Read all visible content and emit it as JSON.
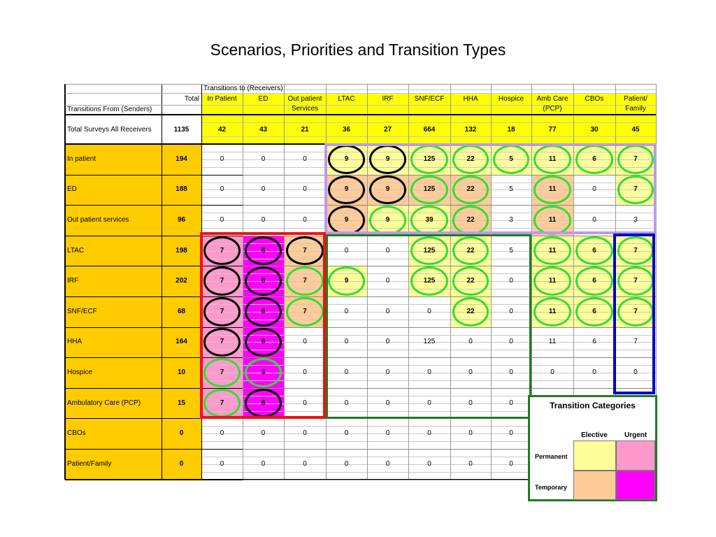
{
  "title": "Scenarios, Priorities and Transition Types",
  "header": {
    "group_label": "Transitions to (Receivers)",
    "total_label": "Total",
    "senders_label": "Transitions From (Senders)",
    "receivers": [
      {
        "line1": "In Patient",
        "line2": ""
      },
      {
        "line1": "ED",
        "line2": ""
      },
      {
        "line1": "Out patient",
        "line2": "Services"
      },
      {
        "line1": "LTAC",
        "line2": ""
      },
      {
        "line1": "IRF",
        "line2": ""
      },
      {
        "line1": "SNF/ECF",
        "line2": ""
      },
      {
        "line1": "HHA",
        "line2": ""
      },
      {
        "line1": "Hospice",
        "line2": ""
      },
      {
        "line1": "Amb Care",
        "line2": "(PCP)"
      },
      {
        "line1": "CBOs",
        "line2": ""
      },
      {
        "line1": "Patient/",
        "line2": "Family"
      }
    ]
  },
  "totals_row": {
    "label": "Total Surveys All Receivers",
    "total": "1135",
    "values": [
      "42",
      "43",
      "21",
      "36",
      "27",
      "664",
      "132",
      "18",
      "77",
      "30",
      "45"
    ]
  },
  "rows": [
    {
      "label": "In patient",
      "total": "194",
      "values": [
        "0",
        "0",
        "0",
        "9",
        "9",
        "125",
        "22",
        "5",
        "11",
        "6",
        "7"
      ]
    },
    {
      "label": "ED",
      "total": "188",
      "values": [
        "0",
        "0",
        "0",
        "9",
        "9",
        "125",
        "22",
        "5",
        "11",
        "0",
        "7"
      ]
    },
    {
      "label": "Out patient services",
      "total": "96",
      "values": [
        "0",
        "0",
        "0",
        "9",
        "9",
        "39",
        "22",
        "3",
        "11",
        "0",
        "3"
      ]
    },
    {
      "label": "LTAC",
      "total": "198",
      "values": [
        "7",
        "8",
        "7",
        "0",
        "0",
        "125",
        "22",
        "5",
        "11",
        "6",
        "7"
      ]
    },
    {
      "label": "IRF",
      "total": "202",
      "values": [
        "7",
        "8",
        "7",
        "9",
        "0",
        "125",
        "22",
        "0",
        "11",
        "6",
        "7"
      ]
    },
    {
      "label": "SNF/ECF",
      "total": "68",
      "values": [
        "7",
        "8",
        "7",
        "0",
        "0",
        "0",
        "22",
        "0",
        "11",
        "6",
        "7"
      ]
    },
    {
      "label": "HHA",
      "total": "164",
      "values": [
        "7",
        "8",
        "0",
        "0",
        "0",
        "125",
        "0",
        "0",
        "11",
        "6",
        "7"
      ]
    },
    {
      "label": "Hospice",
      "total": "10",
      "values": [
        "7",
        "3",
        "0",
        "0",
        "0",
        "0",
        "0",
        "0",
        "0",
        "0",
        "0"
      ]
    },
    {
      "label": "Ambulatory Care (PCP)",
      "total": "15",
      "values": [
        "7",
        "8",
        "0",
        "0",
        "0",
        "0",
        "0",
        "0",
        "",
        "",
        ""
      ]
    },
    {
      "label": "CBOs",
      "total": "0",
      "values": [
        "0",
        "0",
        "0",
        "0",
        "0",
        "0",
        "0",
        "0",
        "",
        "",
        ""
      ]
    },
    {
      "label": "Patient/Family",
      "total": "0",
      "values": [
        "0",
        "0",
        "0",
        "0",
        "0",
        "0",
        "0",
        "0",
        "",
        "",
        ""
      ]
    }
  ],
  "legend": {
    "title": "Transition Categories",
    "col_elective": "Elective",
    "col_urgent": "Urgent",
    "row_permanent": "Permanent",
    "row_temporary": "Temporary",
    "colors": {
      "permanent_elective": "#ffff99",
      "permanent_urgent": "#ff99cc",
      "temporary_elective": "#ffcc99",
      "temporary_urgent": "#ff00ff"
    }
  },
  "colors": {
    "header_yellow": "#ffff00",
    "label_gold": "#ffcc00",
    "light_yellow": "#ffff99",
    "peach": "#ffcc99",
    "pink": "#ff99cc",
    "magenta": "#ff00ff",
    "oval_black": "#000000",
    "oval_green": "#33dd33",
    "box_purple": "#bb99ee",
    "box_red": "#ee1111",
    "box_green": "#1e7d1e",
    "box_blue": "#0000cc"
  },
  "cell_styles": [
    [
      "w",
      "w",
      "w",
      "Lk",
      "Yk",
      "Yg",
      "Yg",
      "Yg",
      "Yg",
      "Yg",
      "Yg"
    ],
    [
      "w",
      "w",
      "w",
      "Pk",
      "Pk",
      "Pg",
      "Pg",
      "w",
      "Pg",
      "w",
      "Yg"
    ],
    [
      "w",
      "w",
      "w",
      "Pk",
      "Yg",
      "Yg",
      "Pg",
      "w",
      "Pg",
      "w",
      "w"
    ],
    [
      "Kk",
      "Mk",
      "Pk",
      "w",
      "w",
      "Yg",
      "Yg",
      "w",
      "Yg",
      "Yg",
      "Yg"
    ],
    [
      "Kk",
      "Mk",
      "Pg",
      "Yg",
      "w",
      "Yg",
      "Yg",
      "w",
      "Yg",
      "Yg",
      "Yg"
    ],
    [
      "Kk",
      "Mk",
      "Pg",
      "w",
      "w",
      "w",
      "Yg",
      "w",
      "Yg",
      "Yg",
      "Yg"
    ],
    [
      "Kk",
      "Mk",
      "w",
      "w",
      "w",
      "w",
      "w",
      "w",
      "w",
      "w",
      "w"
    ],
    [
      "Kg",
      "Mg",
      "w",
      "w",
      "w",
      "w",
      "w",
      "w",
      "w",
      "w",
      "w"
    ],
    [
      "Kg",
      "Mk",
      "w",
      "w",
      "w",
      "w",
      "w",
      "w",
      "w",
      "w",
      "w"
    ],
    [
      "w",
      "w",
      "w",
      "w",
      "w",
      "w",
      "w",
      "w",
      "w",
      "w",
      "w"
    ],
    [
      "w",
      "w",
      "w",
      "w",
      "w",
      "w",
      "w",
      "w",
      "w",
      "w",
      "w"
    ]
  ]
}
